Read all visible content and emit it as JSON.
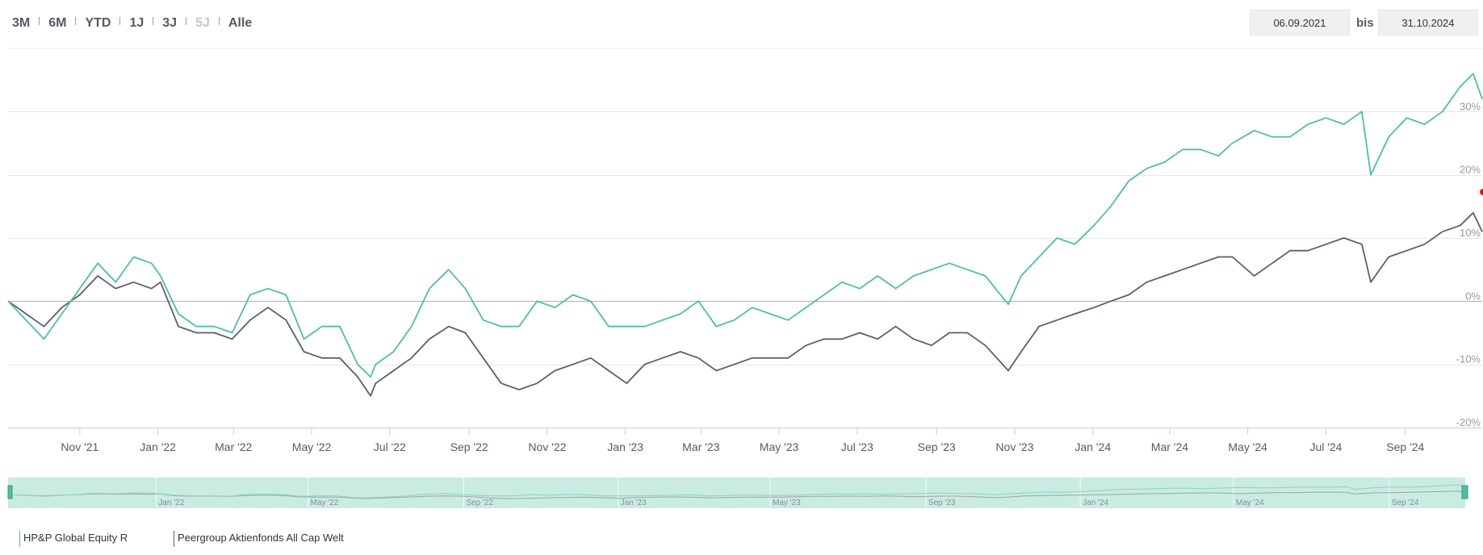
{
  "toolbar": {
    "ranges": [
      {
        "label": "3M",
        "enabled": true
      },
      {
        "label": "6M",
        "enabled": true
      },
      {
        "label": "YTD",
        "enabled": true
      },
      {
        "label": "1J",
        "enabled": true
      },
      {
        "label": "3J",
        "enabled": true
      },
      {
        "label": "5J",
        "enabled": false
      },
      {
        "label": "Alle",
        "enabled": true
      }
    ],
    "from_date": "06.09.2021",
    "bis_label": "bis",
    "to_date": "31.10.2024"
  },
  "colors": {
    "fund": "#4fbf9f",
    "peer": "#5a5e6e",
    "navigator_fill": "#c9ebe2",
    "grid": "#e6e6e6",
    "zero_line": "#b0b0b0"
  },
  "chart_data": {
    "type": "line",
    "x_start": "2021-09-06",
    "x_end": "2024-10-31",
    "x_tick_labels": [
      "Nov '21",
      "Jan '22",
      "Mar '22",
      "May '22",
      "Jul '22",
      "Sep '22",
      "Nov '22",
      "Jan '23",
      "Mar '23",
      "May '23",
      "Jul '23",
      "Sep '23",
      "Nov '23",
      "Jan '24",
      "Mar '24",
      "May '24",
      "Jul '24",
      "Sep '24"
    ],
    "x_tick_dates": [
      "2021-11-01",
      "2022-01-01",
      "2022-03-01",
      "2022-05-01",
      "2022-07-01",
      "2022-09-01",
      "2022-11-01",
      "2023-01-01",
      "2023-03-01",
      "2023-05-01",
      "2023-07-01",
      "2023-09-01",
      "2023-11-01",
      "2024-01-01",
      "2024-03-01",
      "2024-05-01",
      "2024-07-01",
      "2024-09-01"
    ],
    "y_ticks": [
      -20,
      -10,
      0,
      10,
      20,
      30
    ],
    "y_tick_labels": [
      "-20%",
      "-10%",
      "0%",
      "10%",
      "20%",
      "30%"
    ],
    "ylim": [
      -20,
      40
    ],
    "y_unit": "%",
    "grid": true,
    "navigator_labels": [
      "Jan '22",
      "May '22",
      "Sep '22",
      "Jan '23",
      "May '23",
      "Sep '23",
      "Jan '24",
      "May '24",
      "Sep '24"
    ],
    "navigator_dates": [
      "2022-01-01",
      "2022-05-01",
      "2022-09-01",
      "2023-01-01",
      "2023-05-01",
      "2023-09-01",
      "2024-01-01",
      "2024-05-01",
      "2024-09-01"
    ],
    "legend_placement": "bottom-left",
    "series": [
      {
        "name": "HP&P Global Equity R",
        "color": "#4fbf9f",
        "x": [
          "2021-09-06",
          "2021-09-20",
          "2021-10-04",
          "2021-10-18",
          "2021-11-01",
          "2021-11-15",
          "2021-11-29",
          "2021-12-13",
          "2021-12-27",
          "2022-01-03",
          "2022-01-17",
          "2022-01-31",
          "2022-02-14",
          "2022-02-28",
          "2022-03-14",
          "2022-03-28",
          "2022-04-11",
          "2022-04-25",
          "2022-05-09",
          "2022-05-23",
          "2022-06-06",
          "2022-06-16",
          "2022-06-20",
          "2022-07-04",
          "2022-07-18",
          "2022-08-01",
          "2022-08-16",
          "2022-08-29",
          "2022-09-12",
          "2022-09-26",
          "2022-10-10",
          "2022-10-24",
          "2022-11-07",
          "2022-11-21",
          "2022-12-05",
          "2022-12-19",
          "2023-01-02",
          "2023-01-16",
          "2023-01-30",
          "2023-02-13",
          "2023-02-27",
          "2023-03-13",
          "2023-03-27",
          "2023-04-10",
          "2023-04-24",
          "2023-05-08",
          "2023-05-22",
          "2023-06-05",
          "2023-06-19",
          "2023-07-03",
          "2023-07-17",
          "2023-07-31",
          "2023-08-14",
          "2023-08-28",
          "2023-09-11",
          "2023-09-25",
          "2023-10-09",
          "2023-10-27",
          "2023-11-06",
          "2023-11-20",
          "2023-12-04",
          "2023-12-18",
          "2024-01-02",
          "2024-01-15",
          "2024-01-29",
          "2024-02-12",
          "2024-02-26",
          "2024-03-11",
          "2024-03-25",
          "2024-04-08",
          "2024-04-19",
          "2024-05-06",
          "2024-05-20",
          "2024-06-03",
          "2024-06-17",
          "2024-07-01",
          "2024-07-15",
          "2024-07-29",
          "2024-08-05",
          "2024-08-19",
          "2024-09-02",
          "2024-09-16",
          "2024-09-30",
          "2024-10-14",
          "2024-10-24",
          "2024-10-31"
        ],
        "values": [
          0,
          -3,
          -6,
          -2,
          2,
          6,
          3,
          7,
          6,
          4,
          -2,
          -4,
          -4,
          -5,
          1,
          2,
          1,
          -6,
          -4,
          -4,
          -10,
          -12,
          -10,
          -8,
          -4,
          2,
          5,
          2,
          -3,
          -4,
          -4,
          0,
          -1,
          1,
          0,
          -4,
          -4,
          -4,
          -3,
          -2,
          0,
          -4,
          -3,
          -1,
          -2,
          -3,
          -1,
          1,
          3,
          2,
          4,
          2,
          4,
          5,
          6,
          5,
          4,
          -0.5,
          4,
          7,
          10,
          9,
          12,
          15,
          19,
          21,
          22,
          24,
          24,
          23,
          25,
          27,
          26,
          26,
          28,
          29,
          28,
          30,
          20,
          26,
          29,
          28,
          30,
          34,
          36,
          32
        ]
      },
      {
        "name": "Peergroup Aktienfonds All Cap Welt",
        "color": "#5a5e6e",
        "x": [
          "2021-09-06",
          "2021-09-20",
          "2021-10-04",
          "2021-10-18",
          "2021-11-01",
          "2021-11-15",
          "2021-11-29",
          "2021-12-13",
          "2021-12-27",
          "2022-01-03",
          "2022-01-17",
          "2022-01-31",
          "2022-02-14",
          "2022-02-28",
          "2022-03-14",
          "2022-03-28",
          "2022-04-11",
          "2022-04-25",
          "2022-05-09",
          "2022-05-23",
          "2022-06-06",
          "2022-06-16",
          "2022-06-20",
          "2022-07-04",
          "2022-07-18",
          "2022-08-01",
          "2022-08-16",
          "2022-08-29",
          "2022-09-12",
          "2022-09-26",
          "2022-10-10",
          "2022-10-24",
          "2022-11-07",
          "2022-11-21",
          "2022-12-05",
          "2022-12-19",
          "2023-01-02",
          "2023-01-16",
          "2023-01-30",
          "2023-02-13",
          "2023-02-27",
          "2023-03-13",
          "2023-03-27",
          "2023-04-10",
          "2023-04-24",
          "2023-05-08",
          "2023-05-22",
          "2023-06-05",
          "2023-06-19",
          "2023-07-03",
          "2023-07-17",
          "2023-07-31",
          "2023-08-14",
          "2023-08-28",
          "2023-09-11",
          "2023-09-25",
          "2023-10-09",
          "2023-10-27",
          "2023-11-06",
          "2023-11-20",
          "2023-12-04",
          "2023-12-18",
          "2024-01-02",
          "2024-01-15",
          "2024-01-29",
          "2024-02-12",
          "2024-02-26",
          "2024-03-11",
          "2024-03-25",
          "2024-04-08",
          "2024-04-19",
          "2024-05-06",
          "2024-05-20",
          "2024-06-03",
          "2024-06-17",
          "2024-07-01",
          "2024-07-15",
          "2024-07-29",
          "2024-08-05",
          "2024-08-19",
          "2024-09-02",
          "2024-09-16",
          "2024-09-30",
          "2024-10-14",
          "2024-10-24",
          "2024-10-31"
        ],
        "values": [
          0,
          -2,
          -4,
          -1,
          1,
          4,
          2,
          3,
          2,
          3,
          -4,
          -5,
          -5,
          -6,
          -3,
          -1,
          -3,
          -8,
          -9,
          -9,
          -12,
          -15,
          -13,
          -11,
          -9,
          -6,
          -4,
          -5,
          -9,
          -13,
          -14,
          -13,
          -11,
          -10,
          -9,
          -11,
          -13,
          -10,
          -9,
          -8,
          -9,
          -11,
          -10,
          -9,
          -9,
          -9,
          -7,
          -6,
          -6,
          -5,
          -6,
          -4,
          -6,
          -7,
          -5,
          -5,
          -7,
          -11,
          -8,
          -4,
          -3,
          -2,
          -1,
          0,
          1,
          3,
          4,
          5,
          6,
          7,
          7,
          4,
          6,
          8,
          8,
          9,
          10,
          9,
          3,
          7,
          8,
          9,
          11,
          12,
          14,
          11
        ]
      }
    ]
  }
}
